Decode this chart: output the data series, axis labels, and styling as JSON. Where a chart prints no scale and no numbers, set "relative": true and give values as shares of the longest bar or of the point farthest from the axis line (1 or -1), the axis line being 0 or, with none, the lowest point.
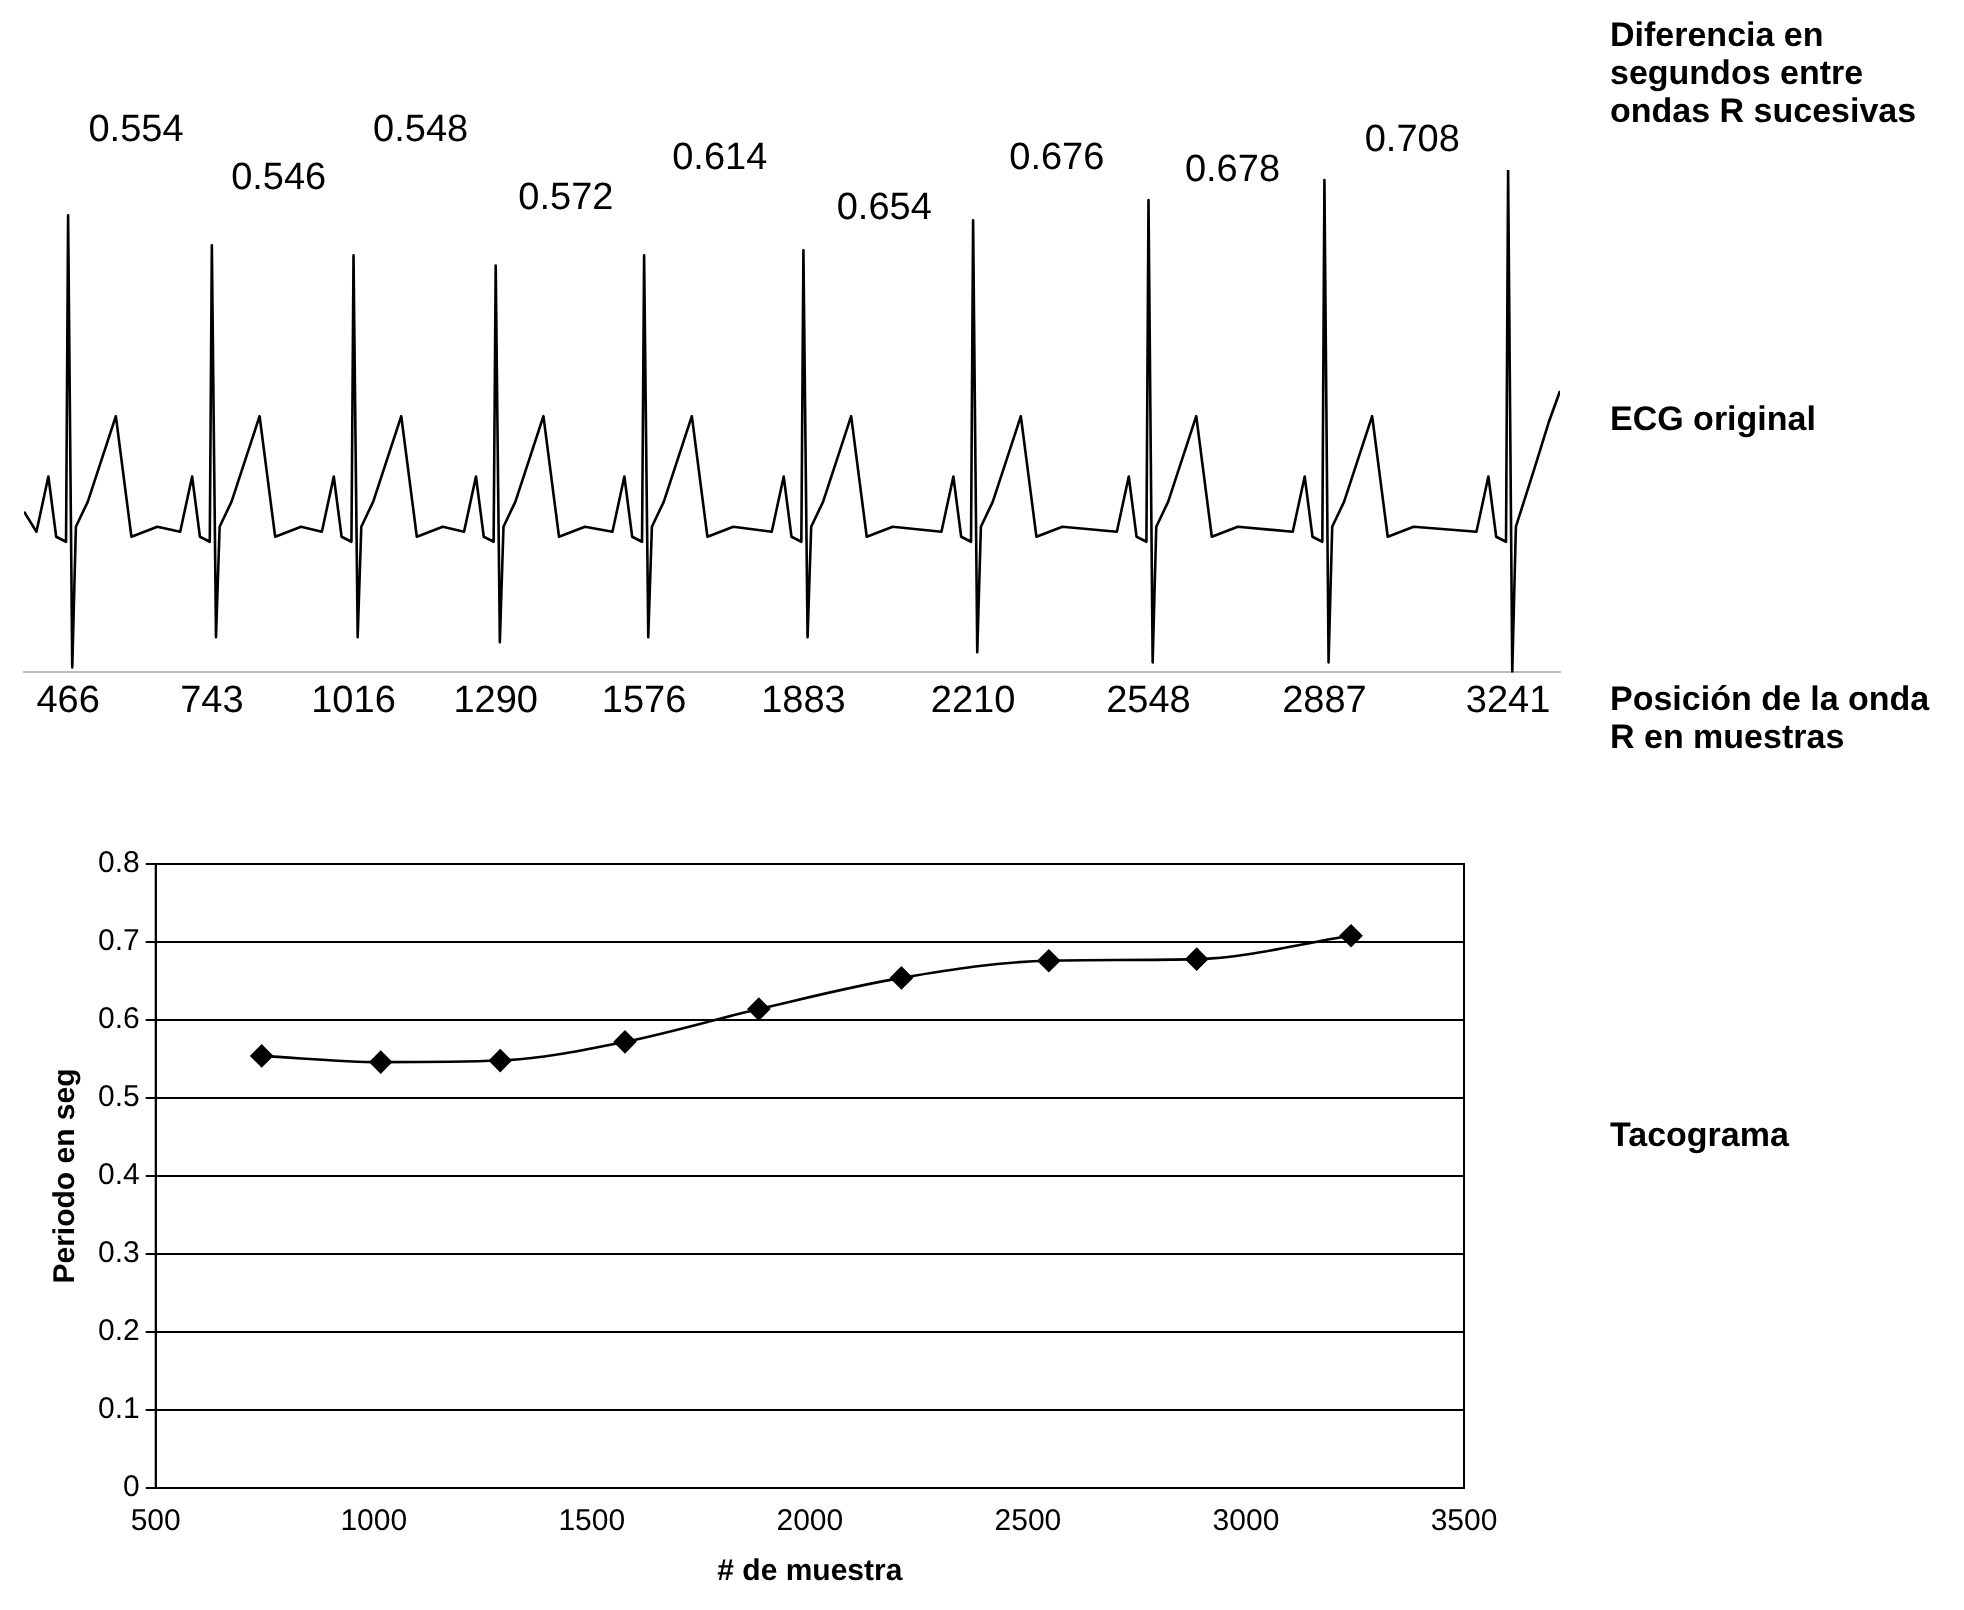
{
  "chart_data": [
    {
      "type": "line",
      "relative": true,
      "color": "#000000",
      "xlim": [
        381,
        3341
      ],
      "xticks": [
        466,
        743,
        1016,
        1290,
        1576,
        1883,
        2210,
        2548,
        2887,
        3241
      ],
      "x": [
        381,
        405,
        428,
        443,
        462,
        466,
        474,
        481,
        504,
        558,
        588,
        638,
        682,
        705,
        720,
        739,
        743,
        751,
        758,
        781,
        835,
        865,
        915,
        955,
        978,
        993,
        1012,
        1016,
        1024,
        1031,
        1054,
        1108,
        1138,
        1188,
        1229,
        1252,
        1267,
        1286,
        1290,
        1298,
        1305,
        1328,
        1382,
        1412,
        1462,
        1515,
        1538,
        1553,
        1572,
        1576,
        1584,
        1591,
        1614,
        1668,
        1698,
        1748,
        1822,
        1845,
        1860,
        1879,
        1883,
        1891,
        1898,
        1921,
        1975,
        2005,
        2055,
        2149,
        2172,
        2187,
        2206,
        2210,
        2218,
        2225,
        2248,
        2302,
        2332,
        2382,
        2487,
        2510,
        2525,
        2544,
        2548,
        2556,
        2563,
        2586,
        2640,
        2670,
        2720,
        2826,
        2849,
        2864,
        2883,
        2887,
        2895,
        2902,
        2925,
        2979,
        3009,
        3059,
        3180,
        3203,
        3218,
        3237,
        3241,
        3249,
        3256,
        3290,
        3320,
        3341
      ],
      "values": [
        0.32,
        0.28,
        0.39,
        0.27,
        0.26,
        0.91,
        0.01,
        0.29,
        0.34,
        0.51,
        0.27,
        0.29,
        0.28,
        0.39,
        0.27,
        0.26,
        0.85,
        0.07,
        0.29,
        0.34,
        0.51,
        0.27,
        0.29,
        0.28,
        0.39,
        0.27,
        0.26,
        0.83,
        0.07,
        0.29,
        0.34,
        0.51,
        0.27,
        0.29,
        0.28,
        0.39,
        0.27,
        0.26,
        0.81,
        0.06,
        0.29,
        0.34,
        0.51,
        0.27,
        0.29,
        0.28,
        0.39,
        0.27,
        0.26,
        0.83,
        0.07,
        0.29,
        0.34,
        0.51,
        0.27,
        0.29,
        0.28,
        0.39,
        0.27,
        0.26,
        0.84,
        0.07,
        0.29,
        0.34,
        0.51,
        0.27,
        0.29,
        0.28,
        0.39,
        0.27,
        0.26,
        0.9,
        0.04,
        0.29,
        0.34,
        0.51,
        0.27,
        0.29,
        0.28,
        0.39,
        0.27,
        0.26,
        0.94,
        0.02,
        0.29,
        0.34,
        0.51,
        0.27,
        0.29,
        0.28,
        0.39,
        0.27,
        0.26,
        0.98,
        0.02,
        0.29,
        0.34,
        0.51,
        0.27,
        0.29,
        0.28,
        0.39,
        0.27,
        0.26,
        1,
        0,
        0.29,
        0.4,
        0.5,
        0.56
      ],
      "annotations": [
        "0.554",
        "0.546",
        "0.548",
        "0.572",
        "0.614",
        "0.654",
        "0.676",
        "0.678",
        "0.708",
        "Diferencia en segundos entre ondas R sucesivas",
        "ECG original",
        "Posición de la onda R en muestras"
      ]
    },
    {
      "type": "line",
      "color": "#000000",
      "marker": "diamond",
      "grid": "y",
      "xlabel": "# de muestra",
      "ylabel": "Periodo en seg",
      "x": [
        743,
        1016,
        1290,
        1576,
        1883,
        2210,
        2548,
        2887,
        3241
      ],
      "values": [
        0.554,
        0.546,
        0.548,
        0.572,
        0.614,
        0.654,
        0.676,
        0.678,
        0.708
      ],
      "xlim": [
        500,
        3500
      ],
      "xticks": [
        500,
        1000,
        1500,
        2000,
        2500,
        3000,
        3500
      ],
      "ylim": [
        0,
        0.8
      ],
      "yticks": [
        0,
        0.1,
        0.2,
        0.3,
        0.4,
        0.5,
        0.6,
        0.7,
        0.8
      ],
      "annotations": [
        "Tacograma"
      ]
    }
  ]
}
